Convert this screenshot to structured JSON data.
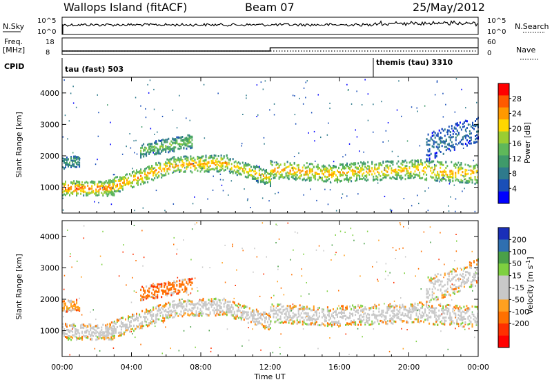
{
  "header": {
    "station": "Wallops Island (fitACF)",
    "beam": "Beam 07",
    "date": "25/May/2012"
  },
  "sky_panel": {
    "left_label": "N.Sky",
    "right_label": "N.Search",
    "left_ticks": [
      "10^5",
      "10^0"
    ],
    "right_ticks": [
      "10^5",
      "10^0"
    ]
  },
  "freq_panel": {
    "left_label_1": "Freq.",
    "left_label_2": "[MHz]",
    "right_label": "Nave",
    "left_ticks": [
      "18",
      "8"
    ],
    "right_ticks": [
      "60",
      "0"
    ],
    "frequency_steps": [
      {
        "start_hour": 0,
        "end_hour": 12,
        "mhz": 10.5
      },
      {
        "start_hour": 12,
        "end_hour": 24,
        "mhz": 12.8
      }
    ]
  },
  "cpid_panel": {
    "label": "CPID",
    "modes": [
      {
        "start_hour": 0,
        "name": "tau (fast) 503"
      },
      {
        "start_hour": 18,
        "name": "themis (tau) 3310"
      }
    ]
  },
  "chart_data": [
    {
      "type": "heatmap",
      "quantity": "power",
      "xlabel": "",
      "ylabel": "Slant Range [km]",
      "x_ticks": [
        "00:00",
        "04:00",
        "08:00",
        "12:00",
        "16:00",
        "20:00",
        "00:00"
      ],
      "xlim_hours": [
        0,
        24
      ],
      "y_ticks": [
        1000,
        2000,
        3000,
        4000
      ],
      "ylim_km": [
        180,
        4500
      ],
      "colorbar": {
        "label": "Power [dB]",
        "ticks": [
          4,
          8,
          12,
          16,
          20,
          24,
          28
        ],
        "range": [
          0,
          32
        ],
        "colors": [
          "#0000ff",
          "#1a4fb8",
          "#2e7a8c",
          "#3f9a6a",
          "#5fb85a",
          "#9acd32",
          "#ffd700",
          "#ff9900",
          "#ff5a00",
          "#ff0000"
        ]
      },
      "echo_bands": [
        {
          "t0": 0.0,
          "t1": 3.0,
          "range_start_km": 1000,
          "range_end_km": 1000,
          "width_km": 230,
          "power_db": 27
        },
        {
          "t0": 2.5,
          "t1": 6.5,
          "range_start_km": 1000,
          "range_end_km": 1750,
          "width_km": 260,
          "power_db": 25
        },
        {
          "t0": 6.5,
          "t1": 9.5,
          "range_start_km": 1750,
          "range_end_km": 1800,
          "width_km": 260,
          "power_db": 24
        },
        {
          "t0": 9.5,
          "t1": 12.0,
          "range_start_km": 1750,
          "range_end_km": 1300,
          "width_km": 240,
          "power_db": 22
        },
        {
          "t0": 12.0,
          "t1": 16.0,
          "range_start_km": 1600,
          "range_end_km": 1450,
          "width_km": 280,
          "power_db": 24
        },
        {
          "t0": 16.0,
          "t1": 20.5,
          "range_start_km": 1500,
          "range_end_km": 1600,
          "width_km": 300,
          "power_db": 23
        },
        {
          "t0": 20.5,
          "t1": 24.0,
          "range_start_km": 1600,
          "range_end_km": 1450,
          "width_km": 320,
          "power_db": 24
        },
        {
          "t0": 4.5,
          "t1": 7.5,
          "range_start_km": 2200,
          "range_end_km": 2500,
          "width_km": 220,
          "power_db": 16
        },
        {
          "t0": 0.0,
          "t1": 1.0,
          "range_start_km": 1800,
          "range_end_km": 1850,
          "width_km": 180,
          "power_db": 12
        },
        {
          "t0": 21.0,
          "t1": 24.0,
          "range_start_km": 2300,
          "range_end_km": 2900,
          "width_km": 420,
          "power_db": 8
        }
      ]
    },
    {
      "type": "heatmap",
      "quantity": "velocity",
      "xlabel": "Time UT",
      "ylabel": "Slant Range [km]",
      "x_ticks": [
        "00:00",
        "04:00",
        "08:00",
        "12:00",
        "16:00",
        "20:00",
        "00:00"
      ],
      "xlim_hours": [
        0,
        24
      ],
      "y_ticks": [
        1000,
        2000,
        3000,
        4000
      ],
      "ylim_km": [
        180,
        4500
      ],
      "colorbar": {
        "label": "Velocity [m s^-1]",
        "ticks": [
          "200",
          "100",
          "50",
          "15",
          "-15",
          "-50",
          "-100",
          "-200"
        ],
        "colors": [
          "#1a2fb8",
          "#2f6fb0",
          "#4aa048",
          "#7ed040",
          "#c8c8c8",
          "#c8c8c8",
          "#ffa020",
          "#ff7000",
          "#ff3000",
          "#ff0000"
        ]
      },
      "echo_bands": [
        {
          "t0": 0.0,
          "t1": 3.0,
          "range_start_km": 1000,
          "range_end_km": 1000,
          "width_km": 260,
          "velocity_ms": 0
        },
        {
          "t0": 2.5,
          "t1": 6.5,
          "range_start_km": 1000,
          "range_end_km": 1750,
          "width_km": 280,
          "velocity_ms": 0
        },
        {
          "t0": 6.5,
          "t1": 9.5,
          "range_start_km": 1750,
          "range_end_km": 1800,
          "width_km": 280,
          "velocity_ms": 0
        },
        {
          "t0": 9.5,
          "t1": 12.0,
          "range_start_km": 1750,
          "range_end_km": 1300,
          "width_km": 260,
          "velocity_ms": 0
        },
        {
          "t0": 12.0,
          "t1": 16.0,
          "range_start_km": 1600,
          "range_end_km": 1450,
          "width_km": 300,
          "velocity_ms": 0
        },
        {
          "t0": 16.0,
          "t1": 20.5,
          "range_start_km": 1500,
          "range_end_km": 1600,
          "width_km": 320,
          "velocity_ms": 0
        },
        {
          "t0": 20.5,
          "t1": 24.0,
          "range_start_km": 1600,
          "range_end_km": 1450,
          "width_km": 340,
          "velocity_ms": 0
        },
        {
          "t0": 4.5,
          "t1": 7.5,
          "range_start_km": 2200,
          "range_end_km": 2500,
          "width_km": 220,
          "velocity_ms": -60
        },
        {
          "t0": 0.0,
          "t1": 1.0,
          "range_start_km": 1800,
          "range_end_km": 1850,
          "width_km": 180,
          "velocity_ms": -40
        },
        {
          "t0": 21.0,
          "t1": 24.0,
          "range_start_km": 2300,
          "range_end_km": 2900,
          "width_km": 420,
          "velocity_ms": 0
        }
      ]
    }
  ]
}
